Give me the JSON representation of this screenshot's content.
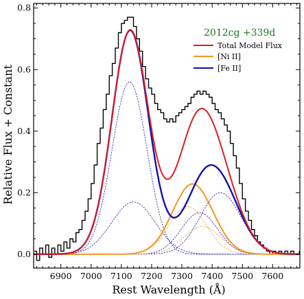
{
  "chart_data": {
    "type": "line",
    "title": "",
    "annotation": "2012cg +339d",
    "annotation_color": "#1a7a1a",
    "xlabel": "Rest Wavelength (Å)",
    "ylabel": "Relative Flux + Constant",
    "xlim": [
      6810,
      7690
    ],
    "ylim": [
      -0.045,
      0.815
    ],
    "xticks": [
      6900,
      7000,
      7100,
      7200,
      7300,
      7400,
      7500,
      7600
    ],
    "xtick_labels": [
      "6900",
      "7000",
      "7100",
      "7200",
      "7300",
      "7400",
      "7500",
      "7600"
    ],
    "yticks": [
      0.0,
      0.2,
      0.4,
      0.6,
      0.8
    ],
    "ytick_labels": [
      "0.0",
      "0.2",
      "0.4",
      "0.6",
      "0.8"
    ],
    "grid": false,
    "legend_position": "top-right",
    "legend": [
      {
        "label": "Total Model Flux",
        "color": "#e31a1c"
      },
      {
        "label": "[Ni II]",
        "color": "#f7941d"
      },
      {
        "label": "[Fe II]",
        "color": "#1010b0"
      }
    ],
    "fe_components": [
      {
        "center": 7127,
        "sigma": 58,
        "amp": 0.56
      },
      {
        "center": 7140,
        "sigma": 72,
        "amp": 0.17
      },
      {
        "center": 7358,
        "sigma": 60,
        "amp": 0.135
      },
      {
        "center": 7428,
        "sigma": 68,
        "amp": 0.2
      }
    ],
    "ni_components": [
      {
        "center": 7319,
        "sigma": 62,
        "amp": 0.155
      },
      {
        "center": 7367,
        "sigma": 62,
        "amp": 0.09
      }
    ],
    "spectrum_points": [
      [
        6812,
        0.01
      ],
      [
        6820,
        -0.02
      ],
      [
        6830,
        0.02
      ],
      [
        6840,
        0.0
      ],
      [
        6850,
        0.03
      ],
      [
        6860,
        -0.01
      ],
      [
        6870,
        0.02
      ],
      [
        6880,
        0.0
      ],
      [
        6890,
        0.03
      ],
      [
        6900,
        0.01
      ],
      [
        6910,
        0.04
      ],
      [
        6920,
        0.02
      ],
      [
        6930,
        0.05
      ],
      [
        6940,
        0.04
      ],
      [
        6950,
        0.07
      ],
      [
        6960,
        0.08
      ],
      [
        6970,
        0.11
      ],
      [
        6980,
        0.14
      ],
      [
        6990,
        0.18
      ],
      [
        7000,
        0.23
      ],
      [
        7010,
        0.29
      ],
      [
        7020,
        0.36
      ],
      [
        7030,
        0.41
      ],
      [
        7040,
        0.47
      ],
      [
        7050,
        0.52
      ],
      [
        7060,
        0.58
      ],
      [
        7070,
        0.62
      ],
      [
        7080,
        0.67
      ],
      [
        7090,
        0.72
      ],
      [
        7100,
        0.75
      ],
      [
        7110,
        0.76
      ],
      [
        7120,
        0.77
      ],
      [
        7130,
        0.77
      ],
      [
        7140,
        0.74
      ],
      [
        7150,
        0.7
      ],
      [
        7160,
        0.66
      ],
      [
        7170,
        0.61
      ],
      [
        7180,
        0.57
      ],
      [
        7190,
        0.54
      ],
      [
        7200,
        0.52
      ],
      [
        7210,
        0.49
      ],
      [
        7220,
        0.47
      ],
      [
        7230,
        0.46
      ],
      [
        7240,
        0.44
      ],
      [
        7250,
        0.43
      ],
      [
        7260,
        0.44
      ],
      [
        7270,
        0.43
      ],
      [
        7280,
        0.45
      ],
      [
        7290,
        0.46
      ],
      [
        7300,
        0.47
      ],
      [
        7310,
        0.48
      ],
      [
        7320,
        0.49
      ],
      [
        7330,
        0.51
      ],
      [
        7340,
        0.52
      ],
      [
        7350,
        0.53
      ],
      [
        7360,
        0.52
      ],
      [
        7370,
        0.53
      ],
      [
        7380,
        0.52
      ],
      [
        7390,
        0.51
      ],
      [
        7400,
        0.49
      ],
      [
        7410,
        0.47
      ],
      [
        7420,
        0.46
      ],
      [
        7430,
        0.44
      ],
      [
        7440,
        0.42
      ],
      [
        7450,
        0.4
      ],
      [
        7460,
        0.36
      ],
      [
        7470,
        0.32
      ],
      [
        7480,
        0.28
      ],
      [
        7490,
        0.23
      ],
      [
        7500,
        0.18
      ],
      [
        7510,
        0.14
      ],
      [
        7520,
        0.11
      ],
      [
        7530,
        0.08
      ],
      [
        7540,
        0.06
      ],
      [
        7550,
        0.04
      ],
      [
        7560,
        0.03
      ],
      [
        7570,
        0.02
      ],
      [
        7580,
        0.01
      ],
      [
        7590,
        0.0
      ],
      [
        7600,
        0.01
      ],
      [
        7610,
        0.0
      ],
      [
        7620,
        0.01
      ],
      [
        7630,
        0.0
      ],
      [
        7640,
        0.01
      ],
      [
        7650,
        0.0
      ],
      [
        7660,
        0.01
      ],
      [
        7670,
        0.0
      ],
      [
        7680,
        0.0
      ],
      [
        7688,
        0.01
      ]
    ]
  }
}
